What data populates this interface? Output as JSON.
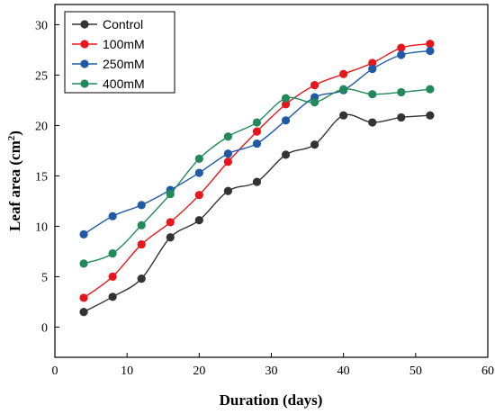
{
  "chart_data": {
    "type": "line",
    "xlabel": "Duration (days)",
    "ylabel_main": "Leaf area (cm",
    "ylabel_sup": "2",
    "ylabel_close": ")",
    "xlim": [
      0,
      60
    ],
    "ylim": [
      -3,
      32
    ],
    "xticks": [
      0,
      10,
      20,
      30,
      40,
      50,
      60
    ],
    "yticks": [
      0,
      5,
      10,
      15,
      20,
      25,
      30
    ],
    "grid": false,
    "legend_position": "top-left",
    "x": [
      4,
      8,
      12,
      16,
      20,
      24,
      28,
      32,
      36,
      40,
      44,
      48,
      52
    ],
    "series": [
      {
        "name": "Control",
        "color": "#333333",
        "values": [
          1.5,
          3.0,
          4.8,
          8.9,
          10.6,
          13.5,
          14.4,
          17.1,
          18.1,
          21.0,
          20.3,
          20.8,
          21.0
        ]
      },
      {
        "name": "100mM",
        "color": "#e8161b",
        "values": [
          2.9,
          5.0,
          8.2,
          10.4,
          13.1,
          16.4,
          19.4,
          22.1,
          24.0,
          25.1,
          26.2,
          27.7,
          28.1
        ]
      },
      {
        "name": "250mM",
        "color": "#1f5aa6",
        "values": [
          9.2,
          11.0,
          12.1,
          13.6,
          15.3,
          17.2,
          18.2,
          20.5,
          22.8,
          23.5,
          25.6,
          27.0,
          27.4
        ]
      },
      {
        "name": "400mM",
        "color": "#21895a",
        "values": [
          6.3,
          7.3,
          10.1,
          13.2,
          16.7,
          18.9,
          20.3,
          22.7,
          22.3,
          23.6,
          23.1,
          23.3,
          23.6
        ]
      }
    ]
  }
}
